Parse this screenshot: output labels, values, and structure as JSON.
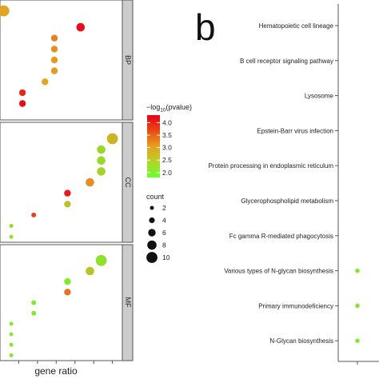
{
  "panel_b_label": "b",
  "x_axis_label": "gene ratio",
  "legend": {
    "color_title_prefix": "−log",
    "color_title_sub": "10",
    "color_title_suffix": "(pvalue)",
    "color_ticks": [
      "4.0",
      "3.5",
      "3.0",
      "2.5",
      "2.0"
    ],
    "size_title": "count",
    "size_ticks": [
      "2",
      "4",
      "6",
      "8",
      "10"
    ]
  },
  "colors": {
    "low": "#66ff33",
    "mid": "#e8a020",
    "high": "#e8001a",
    "strip": "#cccccc"
  },
  "chart_data": [
    {
      "type": "scatter",
      "xlabel": "gene ratio",
      "color_scale": {
        "label": "-log10(pvalue)",
        "range": [
          1.8,
          4.3
        ]
      },
      "size_scale": {
        "label": "count",
        "range": [
          2,
          10
        ]
      },
      "facets": [
        {
          "name": "BP",
          "points": [
            {
              "x": 0.01,
              "y": 8.0,
              "size": 10,
              "color": 3.0
            },
            {
              "x": 0.215,
              "y": 6.5,
              "size": 7,
              "color": 4.2
            },
            {
              "x": 0.145,
              "y": 5.5,
              "size": 5,
              "color": 3.3
            },
            {
              "x": 0.145,
              "y": 4.5,
              "size": 5,
              "color": 3.2
            },
            {
              "x": 0.145,
              "y": 3.5,
              "size": 5,
              "color": 3.1
            },
            {
              "x": 0.145,
              "y": 2.5,
              "size": 5,
              "color": 3.1
            },
            {
              "x": 0.12,
              "y": 1.5,
              "size": 5,
              "color": 3.0
            },
            {
              "x": 0.06,
              "y": 0.5,
              "size": 5,
              "color": 4.0
            },
            {
              "x": 0.06,
              "y": -0.5,
              "size": 5,
              "color": 4.2
            }
          ]
        },
        {
          "name": "CC",
          "points": [
            {
              "x": 0.3,
              "y": 7.5,
              "size": 10,
              "color": 2.8
            },
            {
              "x": 0.27,
              "y": 6.5,
              "size": 7,
              "color": 2.3
            },
            {
              "x": 0.27,
              "y": 5.5,
              "size": 7,
              "color": 2.3
            },
            {
              "x": 0.27,
              "y": 4.5,
              "size": 7,
              "color": 2.4
            },
            {
              "x": 0.24,
              "y": 3.5,
              "size": 7,
              "color": 3.2
            },
            {
              "x": 0.18,
              "y": 2.5,
              "size": 5,
              "color": 4.1
            },
            {
              "x": 0.18,
              "y": 1.5,
              "size": 5,
              "color": 2.6
            },
            {
              "x": 0.09,
              "y": 0.5,
              "size": 3,
              "color": 3.8
            },
            {
              "x": 0.03,
              "y": -0.5,
              "size": 2,
              "color": 2.3
            },
            {
              "x": 0.03,
              "y": -1.5,
              "size": 2,
              "color": 2.2
            }
          ]
        },
        {
          "name": "MF",
          "points": [
            {
              "x": 0.27,
              "y": 7.5,
              "size": 10,
              "color": 2.2
            },
            {
              "x": 0.24,
              "y": 6.5,
              "size": 7,
              "color": 2.6
            },
            {
              "x": 0.18,
              "y": 5.5,
              "size": 5,
              "color": 2.1
            },
            {
              "x": 0.18,
              "y": 4.5,
              "size": 5,
              "color": 3.4
            },
            {
              "x": 0.09,
              "y": 3.5,
              "size": 3,
              "color": 2.1
            },
            {
              "x": 0.09,
              "y": 2.5,
              "size": 3,
              "color": 2.1
            },
            {
              "x": 0.03,
              "y": 1.5,
              "size": 2,
              "color": 2.1
            },
            {
              "x": 0.03,
              "y": 0.5,
              "size": 2,
              "color": 2.1
            },
            {
              "x": 0.03,
              "y": -0.5,
              "size": 2,
              "color": 2.1
            },
            {
              "x": 0.03,
              "y": -1.5,
              "size": 2,
              "color": 2.1
            }
          ]
        }
      ]
    },
    {
      "type": "scatter",
      "categories": [
        "Hematopoietic cell lineage",
        "B cell receptor signaling pathway",
        "Lysosome",
        "Epstein-Barr virus infection",
        "Protein processing in endoplasmic reticulum",
        "Glycerophospholipid metabolism",
        "Fc gamma R-mediated phagocytosis",
        "Various types of N-glycan biosynthesis",
        "Primary immunodeficiency",
        "N-Glycan biosynthesis"
      ],
      "visible_points": [
        {
          "category": "Various types of N-glycan biosynthesis",
          "color": 2.1
        },
        {
          "category": "Primary immunodeficiency",
          "color": 2.1
        },
        {
          "category": "N-Glycan biosynthesis",
          "color": 2.1
        }
      ]
    }
  ]
}
